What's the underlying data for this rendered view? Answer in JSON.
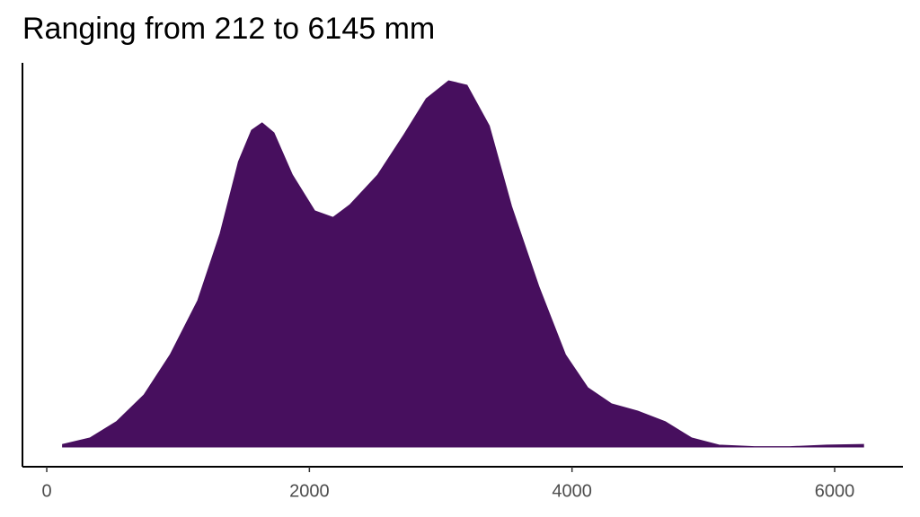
{
  "chart_data": {
    "type": "density",
    "title": "Ranging from 212 to 6145 mm",
    "x": [
      120,
      330,
      530,
      740,
      940,
      1150,
      1320,
      1460,
      1560,
      1640,
      1730,
      1870,
      2040,
      2180,
      2310,
      2520,
      2720,
      2890,
      3060,
      3200,
      3370,
      3540,
      3750,
      3950,
      4120,
      4300,
      4500,
      4710,
      4910,
      5120,
      5390,
      5660,
      5940,
      6220
    ],
    "values": [
      0.007,
      0.025,
      0.069,
      0.142,
      0.252,
      0.4,
      0.583,
      0.779,
      0.865,
      0.885,
      0.858,
      0.743,
      0.645,
      0.627,
      0.662,
      0.743,
      0.853,
      0.951,
      1.0,
      0.988,
      0.877,
      0.657,
      0.436,
      0.252,
      0.162,
      0.118,
      0.098,
      0.069,
      0.025,
      0.005,
      0.001,
      0.001,
      0.005,
      0.007
    ],
    "color": "#470f5e",
    "xlim": [
      -185,
      6520
    ],
    "xticks": [
      0,
      2000,
      4000,
      6000
    ],
    "ylim": [
      -0.054,
      1.049
    ]
  }
}
